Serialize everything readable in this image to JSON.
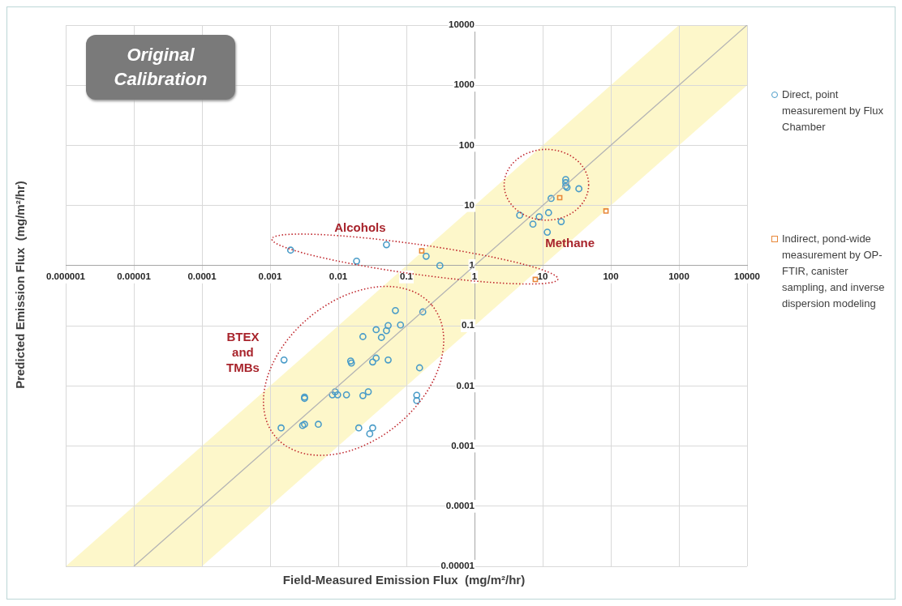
{
  "chart_data": {
    "type": "scatter",
    "title": "Original Calibration",
    "xlabel": "Field-Measured Emission Flux  (mg/m²/hr)",
    "ylabel": "Predicted Emission Flux  (mg/m²/hr)",
    "log": "xy",
    "grid": true,
    "legend": "right",
    "xlim": [
      1e-06,
      10000
    ],
    "xticks": [
      {
        "value": 1e-06,
        "label": "0.000001"
      },
      {
        "value": 1e-05,
        "label": "0.00001"
      },
      0.0001,
      0.001,
      0.01,
      0.1,
      1,
      10,
      100,
      1000,
      10000
    ],
    "ylim": [
      1e-05,
      10000
    ],
    "yticks": [
      {
        "value": 1e-05,
        "label": "0.00001"
      },
      0.0001,
      0.001,
      0.01,
      0.1,
      1,
      10,
      100,
      1000,
      10000
    ],
    "annotations": [
      "Alcohols",
      "Methane",
      "BTEX and TMBs"
    ],
    "series": [
      {
        "type": "line",
        "color": "#b4b4b4",
        "marker": "none",
        "x": [
          1e-06,
          1e-05,
          0.0001,
          1000,
          10000
        ],
        "values": [
          null,
          1e-05,
          0.0001,
          1000,
          10000
        ],
        "lower": [
          1e-05,
          1e-05,
          1e-05,
          100,
          1000
        ],
        "upper": [
          1e-05,
          0.0001,
          0.001,
          10000,
          10000
        ]
      },
      {
        "name": "Direct, point measurement by Flux Chamber",
        "color": "#4a9cc8",
        "marker": "circle",
        "x": [
          21.8,
          21.8,
          21.8,
          22.8,
          34,
          13.3,
          4.6,
          8.9,
          12.2,
          7.2,
          18.7,
          11.7,
          0.002,
          0.0186,
          0.051,
          0.195,
          0.31,
          0.069,
          0.174,
          0.036,
          0.054,
          0.082,
          0.051,
          0.043,
          0.023,
          0.0016,
          0.0152,
          0.0156,
          0.032,
          0.036,
          0.054,
          0.156,
          0.0032,
          0.0032,
          0.009,
          0.0082,
          0.0098,
          0.0132,
          0.0276,
          0.023,
          0.142,
          0.142,
          0.00145,
          0.003,
          0.0032,
          0.0051,
          0.02,
          0.032,
          0.029
        ],
        "values": [
          27,
          24,
          21,
          20,
          19,
          13.1,
          6.9,
          6.5,
          7.6,
          4.9,
          5.4,
          3.6,
          1.81,
          1.19,
          2.23,
          1.43,
          1,
          0.179,
          0.17,
          0.086,
          0.101,
          0.103,
          0.083,
          0.064,
          0.066,
          0.027,
          0.026,
          0.024,
          0.025,
          0.029,
          0.027,
          0.02,
          0.0065,
          0.0062,
          0.008,
          0.0071,
          0.0071,
          0.0071,
          0.008,
          0.0069,
          0.007,
          0.0057,
          0.002,
          0.0022,
          0.0023,
          0.0023,
          0.002,
          0.002,
          0.0016
        ]
      },
      {
        "name": "Indirect, pond-wide measurement by OP-FTIR, canister sampling, and inverse dispersion modeling",
        "color": "#e8883a",
        "marker": "square",
        "x": [
          17.8,
          85,
          7.8,
          0.168
        ],
        "values": [
          13.5,
          8.1,
          0.59,
          1.76
        ]
      }
    ]
  }
}
